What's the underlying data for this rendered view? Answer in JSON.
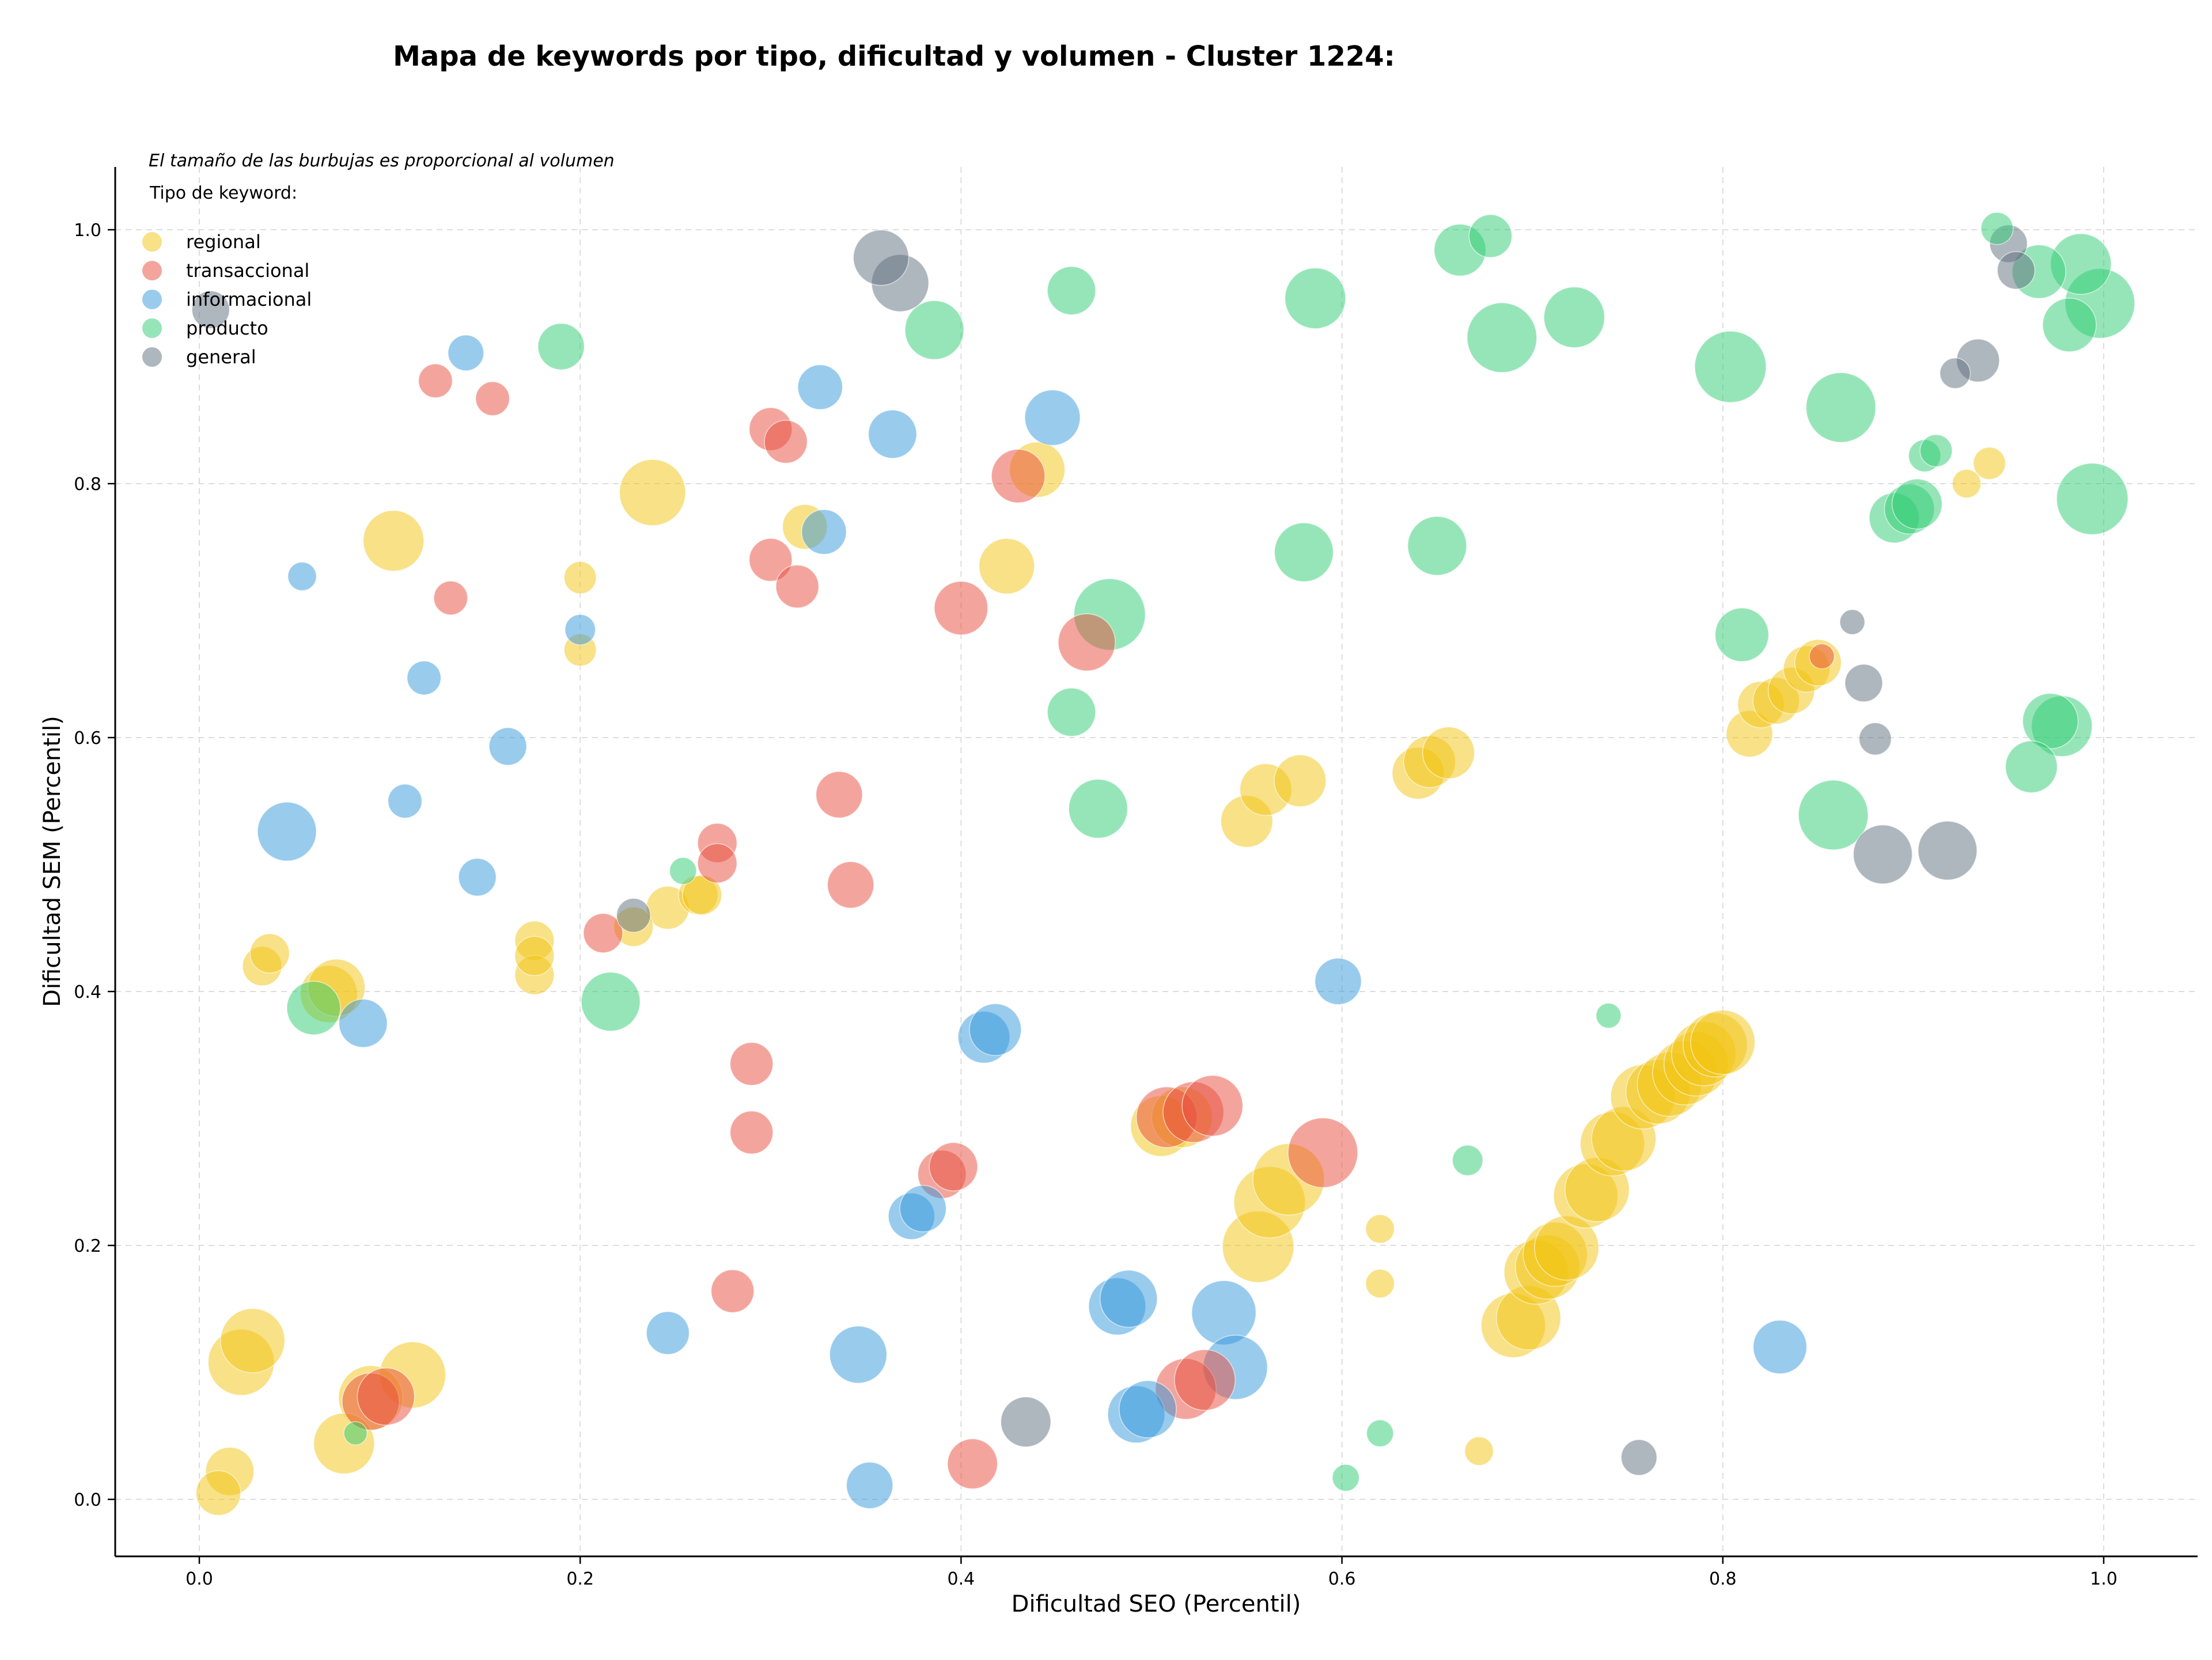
{
  "chart_data": {
    "type": "scatter",
    "title": "Mapa de keywords por tipo, dificultad y volumen - Cluster 1224:",
    "xlabel": "Dificultad SEO (Percentil)",
    "ylabel": "Dificultad SEM (Percentil)",
    "xlim": [
      -0.045,
      1.05
    ],
    "ylim": [
      -0.045,
      1.05
    ],
    "xticks": [
      "0.0",
      "0.2",
      "0.4",
      "0.6",
      "0.8",
      "1.0"
    ],
    "yticks": [
      "0.0",
      "0.2",
      "0.4",
      "0.6",
      "0.8",
      "1.0"
    ],
    "grid": true,
    "legend_placement": "top-left",
    "note": "El tamaño de las burbujas es proporcional al volumen",
    "legend_title": "Tipo de keyword:",
    "series": [
      {
        "name": "regional",
        "color": "#F1C40F",
        "points": [
          [
            0.01,
            0.005,
            25
          ],
          [
            0.016,
            0.022,
            27
          ],
          [
            0.022,
            0.108,
            37
          ],
          [
            0.028,
            0.125,
            36
          ],
          [
            0.033,
            0.42,
            22
          ],
          [
            0.037,
            0.43,
            22
          ],
          [
            0.068,
            0.398,
            32
          ],
          [
            0.072,
            0.403,
            32
          ],
          [
            0.076,
            0.044,
            34
          ],
          [
            0.09,
            0.08,
            36
          ],
          [
            0.112,
            0.098,
            37
          ],
          [
            0.102,
            0.755,
            34
          ],
          [
            0.176,
            0.44,
            22
          ],
          [
            0.176,
            0.413,
            22
          ],
          [
            0.176,
            0.428,
            22
          ],
          [
            0.2,
            0.726,
            18
          ],
          [
            0.2,
            0.669,
            18
          ],
          [
            0.228,
            0.451,
            22
          ],
          [
            0.238,
            0.793,
            37
          ],
          [
            0.246,
            0.466,
            24
          ],
          [
            0.262,
            0.476,
            22
          ],
          [
            0.264,
            0.476,
            22
          ],
          [
            0.318,
            0.766,
            25
          ],
          [
            0.424,
            0.735,
            31
          ],
          [
            0.44,
            0.811,
            31
          ],
          [
            0.505,
            0.294,
            34
          ],
          [
            0.516,
            0.301,
            34
          ],
          [
            0.55,
            0.534,
            29
          ],
          [
            0.556,
            0.199,
            40
          ],
          [
            0.56,
            0.559,
            29
          ],
          [
            0.562,
            0.234,
            40
          ],
          [
            0.572,
            0.252,
            40
          ],
          [
            0.578,
            0.566,
            29
          ],
          [
            0.64,
            0.572,
            29
          ],
          [
            0.646,
            0.581,
            29
          ],
          [
            0.656,
            0.588,
            29
          ],
          [
            0.62,
            0.213,
            16
          ],
          [
            0.62,
            0.17,
            16
          ],
          [
            0.672,
            0.038,
            16
          ],
          [
            0.69,
            0.137,
            36
          ],
          [
            0.698,
            0.143,
            36
          ],
          [
            0.702,
            0.179,
            36
          ],
          [
            0.708,
            0.183,
            36
          ],
          [
            0.712,
            0.193,
            36
          ],
          [
            0.718,
            0.198,
            36
          ],
          [
            0.728,
            0.239,
            36
          ],
          [
            0.734,
            0.244,
            36
          ],
          [
            0.742,
            0.28,
            36
          ],
          [
            0.748,
            0.284,
            36
          ],
          [
            0.758,
            0.317,
            36
          ],
          [
            0.766,
            0.321,
            36
          ],
          [
            0.772,
            0.327,
            36
          ],
          [
            0.78,
            0.336,
            36
          ],
          [
            0.786,
            0.343,
            36
          ],
          [
            0.79,
            0.351,
            36
          ],
          [
            0.796,
            0.358,
            36
          ],
          [
            0.8,
            0.36,
            36
          ],
          [
            0.814,
            0.603,
            26
          ],
          [
            0.82,
            0.626,
            26
          ],
          [
            0.828,
            0.629,
            26
          ],
          [
            0.836,
            0.637,
            26
          ],
          [
            0.844,
            0.654,
            26
          ],
          [
            0.85,
            0.659,
            26
          ],
          [
            0.928,
            0.8,
            16
          ],
          [
            0.94,
            0.816,
            18
          ]
        ]
      },
      {
        "name": "transaccional",
        "color": "#E74C3C",
        "points": [
          [
            0.09,
            0.077,
            32
          ],
          [
            0.098,
            0.081,
            32
          ],
          [
            0.124,
            0.881,
            19
          ],
          [
            0.154,
            0.867,
            19
          ],
          [
            0.132,
            0.71,
            19
          ],
          [
            0.212,
            0.446,
            22
          ],
          [
            0.272,
            0.517,
            22
          ],
          [
            0.272,
            0.501,
            22
          ],
          [
            0.28,
            0.164,
            24
          ],
          [
            0.29,
            0.343,
            24
          ],
          [
            0.29,
            0.289,
            24
          ],
          [
            0.3,
            0.843,
            24
          ],
          [
            0.308,
            0.833,
            24
          ],
          [
            0.3,
            0.74,
            24
          ],
          [
            0.314,
            0.719,
            24
          ],
          [
            0.336,
            0.555,
            26
          ],
          [
            0.342,
            0.484,
            26
          ],
          [
            0.4,
            0.702,
            30
          ],
          [
            0.39,
            0.256,
            27
          ],
          [
            0.396,
            0.262,
            27
          ],
          [
            0.406,
            0.028,
            28
          ],
          [
            0.43,
            0.806,
            30
          ],
          [
            0.466,
            0.675,
            32
          ],
          [
            0.508,
            0.301,
            34
          ],
          [
            0.522,
            0.305,
            34
          ],
          [
            0.532,
            0.31,
            34
          ],
          [
            0.518,
            0.087,
            34
          ],
          [
            0.528,
            0.094,
            34
          ],
          [
            0.59,
            0.273,
            39
          ],
          [
            0.852,
            0.664,
            14
          ]
        ]
      },
      {
        "name": "informacional",
        "color": "#3498DB",
        "points": [
          [
            0.054,
            0.727,
            16
          ],
          [
            0.046,
            0.526,
            33
          ],
          [
            0.086,
            0.375,
            27
          ],
          [
            0.108,
            0.55,
            19
          ],
          [
            0.118,
            0.647,
            19
          ],
          [
            0.14,
            0.903,
            20
          ],
          [
            0.146,
            0.49,
            21
          ],
          [
            0.162,
            0.593,
            21
          ],
          [
            0.2,
            0.685,
            17
          ],
          [
            0.246,
            0.131,
            24
          ],
          [
            0.326,
            0.876,
            25
          ],
          [
            0.328,
            0.762,
            25
          ],
          [
            0.346,
            0.114,
            32
          ],
          [
            0.352,
            0.011,
            26
          ],
          [
            0.364,
            0.839,
            27
          ],
          [
            0.374,
            0.223,
            26
          ],
          [
            0.38,
            0.229,
            26
          ],
          [
            0.412,
            0.364,
            29
          ],
          [
            0.418,
            0.37,
            29
          ],
          [
            0.448,
            0.852,
            31
          ],
          [
            0.482,
            0.152,
            32
          ],
          [
            0.488,
            0.158,
            32
          ],
          [
            0.492,
            0.067,
            32
          ],
          [
            0.498,
            0.071,
            32
          ],
          [
            0.538,
            0.147,
            36
          ],
          [
            0.544,
            0.104,
            36
          ],
          [
            0.598,
            0.408,
            26
          ],
          [
            0.83,
            0.12,
            30
          ]
        ]
      },
      {
        "name": "producto",
        "color": "#2ECC71",
        "points": [
          [
            0.06,
            0.387,
            30
          ],
          [
            0.082,
            0.052,
            13
          ],
          [
            0.19,
            0.908,
            26
          ],
          [
            0.216,
            0.392,
            33
          ],
          [
            0.254,
            0.495,
            15
          ],
          [
            0.386,
            0.921,
            33
          ],
          [
            0.458,
            0.952,
            27
          ],
          [
            0.458,
            0.62,
            27
          ],
          [
            0.472,
            0.544,
            33
          ],
          [
            0.478,
            0.697,
            40
          ],
          [
            0.58,
            0.746,
            33
          ],
          [
            0.586,
            0.946,
            34
          ],
          [
            0.602,
            0.017,
            15
          ],
          [
            0.62,
            0.052,
            15
          ],
          [
            0.65,
            0.751,
            33
          ],
          [
            0.662,
            0.984,
            29
          ],
          [
            0.678,
            0.995,
            24
          ],
          [
            0.666,
            0.267,
            17
          ],
          [
            0.684,
            0.915,
            39
          ],
          [
            0.722,
            0.931,
            34
          ],
          [
            0.74,
            0.381,
            14
          ],
          [
            0.804,
            0.892,
            40
          ],
          [
            0.81,
            0.681,
            30
          ],
          [
            0.858,
            0.539,
            39
          ],
          [
            0.862,
            0.86,
            39
          ],
          [
            0.89,
            0.773,
            28
          ],
          [
            0.898,
            0.78,
            28
          ],
          [
            0.902,
            0.784,
            28
          ],
          [
            0.906,
            0.822,
            18
          ],
          [
            0.912,
            0.826,
            18
          ],
          [
            0.944,
            1.001,
            18
          ],
          [
            0.962,
            0.577,
            29
          ],
          [
            0.966,
            0.967,
            30
          ],
          [
            0.972,
            0.613,
            31
          ],
          [
            0.978,
            0.609,
            34
          ],
          [
            0.982,
            0.925,
            30
          ],
          [
            0.988,
            0.973,
            34
          ],
          [
            0.998,
            0.942,
            39
          ],
          [
            0.994,
            0.788,
            40
          ]
        ]
      },
      {
        "name": "general",
        "color": "#5D6D7E",
        "points": [
          [
            0.006,
            0.937,
            21
          ],
          [
            0.228,
            0.46,
            19
          ],
          [
            0.358,
            0.978,
            31
          ],
          [
            0.368,
            0.958,
            32
          ],
          [
            0.434,
            0.061,
            28
          ],
          [
            0.756,
            0.033,
            20
          ],
          [
            0.868,
            0.691,
            14
          ],
          [
            0.874,
            0.643,
            21
          ],
          [
            0.88,
            0.599,
            18
          ],
          [
            0.884,
            0.508,
            33
          ],
          [
            0.918,
            0.511,
            33
          ],
          [
            0.922,
            0.887,
            17
          ],
          [
            0.934,
            0.897,
            24
          ],
          [
            0.95,
            0.989,
            21
          ],
          [
            0.954,
            0.968,
            21
          ]
        ]
      }
    ]
  }
}
